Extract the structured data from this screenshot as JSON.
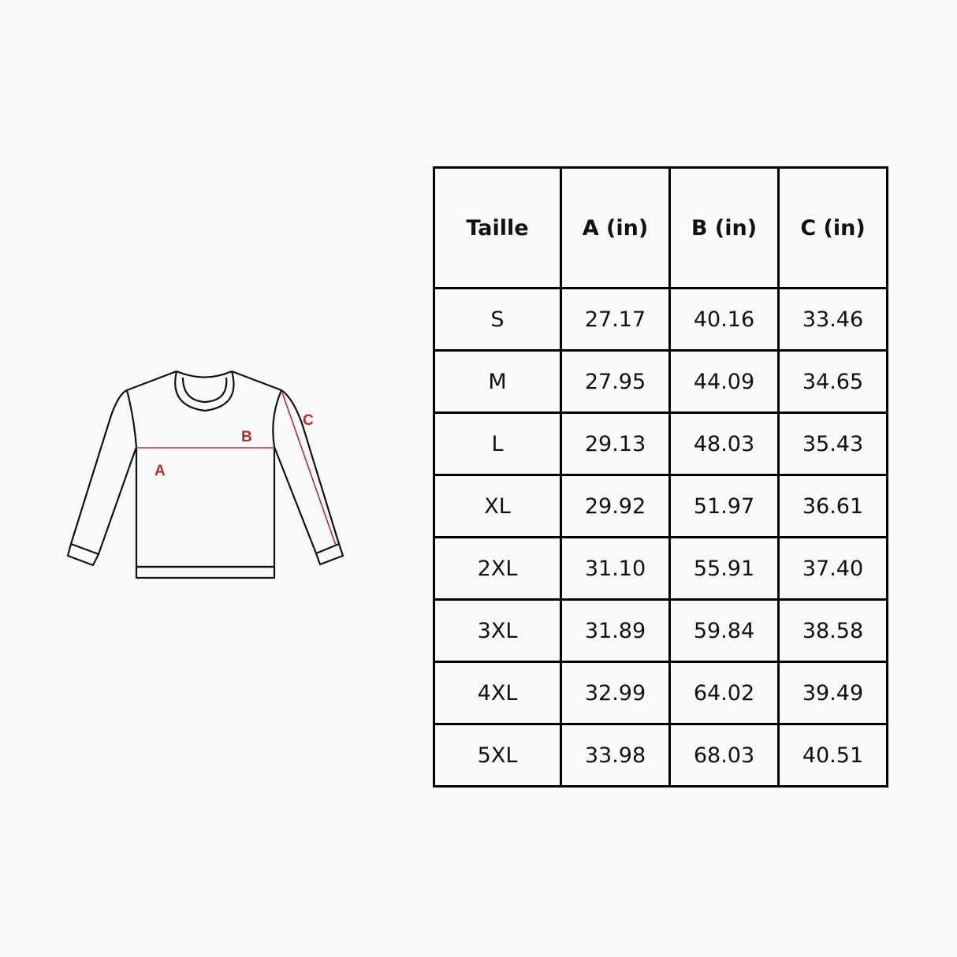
{
  "diagram": {
    "labels": {
      "a": "A",
      "b": "B",
      "c": "C"
    },
    "measure_color": "#c0282a"
  },
  "size_table": {
    "headers": [
      "Taille",
      "A (in)",
      "B (in)",
      "C (in)"
    ],
    "rows": [
      [
        "S",
        "27.17",
        "40.16",
        "33.46"
      ],
      [
        "M",
        "27.95",
        "44.09",
        "34.65"
      ],
      [
        "L",
        "29.13",
        "48.03",
        "35.43"
      ],
      [
        "XL",
        "29.92",
        "51.97",
        "36.61"
      ],
      [
        "2XL",
        "31.10",
        "55.91",
        "37.40"
      ],
      [
        "3XL",
        "31.89",
        "59.84",
        "38.58"
      ],
      [
        "4XL",
        "32.99",
        "64.02",
        "39.49"
      ],
      [
        "5XL",
        "33.98",
        "68.03",
        "40.51"
      ]
    ]
  }
}
